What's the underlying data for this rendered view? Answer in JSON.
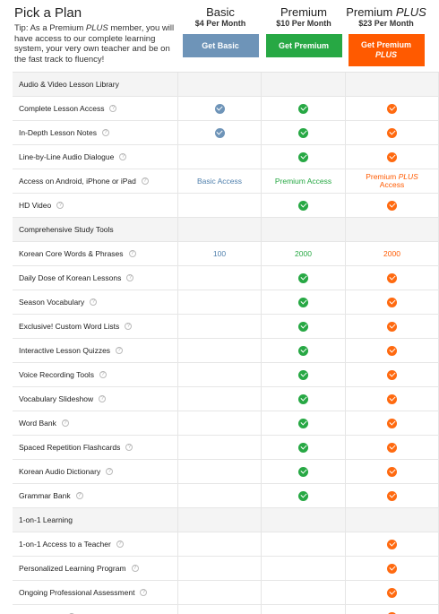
{
  "header": {
    "title": "Pick a Plan",
    "tip_before": "Tip: As a Premium ",
    "tip_em": "PLUS",
    "tip_after": " member, you will have access to our complete learning system, your very own teacher and be on the fast track to fluency!"
  },
  "plans": {
    "basic": {
      "name": "Basic",
      "price": "$4 Per Month",
      "button": "Get Basic"
    },
    "premium": {
      "name": "Premium",
      "price": "$10 Per Month",
      "button": "Get Premium"
    },
    "plus": {
      "name_main": "Premium ",
      "name_em": "PLUS",
      "price": "$23 Per Month",
      "button_main": "Get Premium",
      "button_em": "PLUS"
    }
  },
  "colors": {
    "basic": "#6e94b8",
    "premium": "#27a844",
    "plus": "#ff5a00"
  },
  "rows": [
    {
      "type": "section",
      "label": "Audio & Video Lesson Library"
    },
    {
      "type": "feature",
      "label": "Complete Lesson Access",
      "basic": "check",
      "premium": "check",
      "plus": "check"
    },
    {
      "type": "feature",
      "label": "In-Depth Lesson Notes",
      "basic": "check",
      "premium": "check",
      "plus": "check"
    },
    {
      "type": "feature",
      "label": "Line-by-Line Audio Dialogue",
      "basic": "",
      "premium": "check",
      "plus": "check"
    },
    {
      "type": "feature",
      "label": "Access on Android, iPhone or iPad",
      "basic": "Basic Access",
      "premium": "Premium Access",
      "plus": "access_plus"
    },
    {
      "type": "feature",
      "label": "HD Video",
      "basic": "",
      "premium": "check",
      "plus": "check"
    },
    {
      "type": "section",
      "label": "Comprehensive Study Tools"
    },
    {
      "type": "feature",
      "label": "Korean Core Words & Phrases",
      "basic": "100",
      "premium": "2000",
      "plus": "2000"
    },
    {
      "type": "feature",
      "label": "Daily Dose of Korean Lessons",
      "basic": "",
      "premium": "check",
      "plus": "check"
    },
    {
      "type": "feature",
      "label": "Season Vocabulary",
      "basic": "",
      "premium": "check",
      "plus": "check"
    },
    {
      "type": "feature",
      "label": "Exclusive! Custom Word Lists",
      "basic": "",
      "premium": "check",
      "plus": "check"
    },
    {
      "type": "feature",
      "label": "Interactive Lesson Quizzes",
      "basic": "",
      "premium": "check",
      "plus": "check"
    },
    {
      "type": "feature",
      "label": "Voice Recording Tools",
      "basic": "",
      "premium": "check",
      "plus": "check"
    },
    {
      "type": "feature",
      "label": "Vocabulary Slideshow",
      "basic": "",
      "premium": "check",
      "plus": "check"
    },
    {
      "type": "feature",
      "label": "Word Bank",
      "basic": "",
      "premium": "check",
      "plus": "check"
    },
    {
      "type": "feature",
      "label": "Spaced Repetition Flashcards",
      "basic": "",
      "premium": "check",
      "plus": "check"
    },
    {
      "type": "feature",
      "label": "Korean Audio Dictionary",
      "basic": "",
      "premium": "check",
      "plus": "check"
    },
    {
      "type": "feature",
      "label": "Grammar Bank",
      "basic": "",
      "premium": "check",
      "plus": "check"
    },
    {
      "type": "section",
      "label": "1-on-1 Learning"
    },
    {
      "type": "feature",
      "label": "1-on-1 Access to a Teacher",
      "basic": "",
      "premium": "",
      "plus": "check"
    },
    {
      "type": "feature",
      "label": "Personalized Learning Program",
      "basic": "",
      "premium": "",
      "plus": "check"
    },
    {
      "type": "feature",
      "label": "Ongoing Professional Assessment",
      "basic": "",
      "premium": "",
      "plus": "check"
    },
    {
      "type": "feature",
      "label": "Assignments",
      "basic": "",
      "premium": "",
      "plus": "check"
    }
  ],
  "access_plus": {
    "main": "Premium ",
    "em": "PLUS",
    "line2": "Access"
  },
  "help_glyph": "?"
}
